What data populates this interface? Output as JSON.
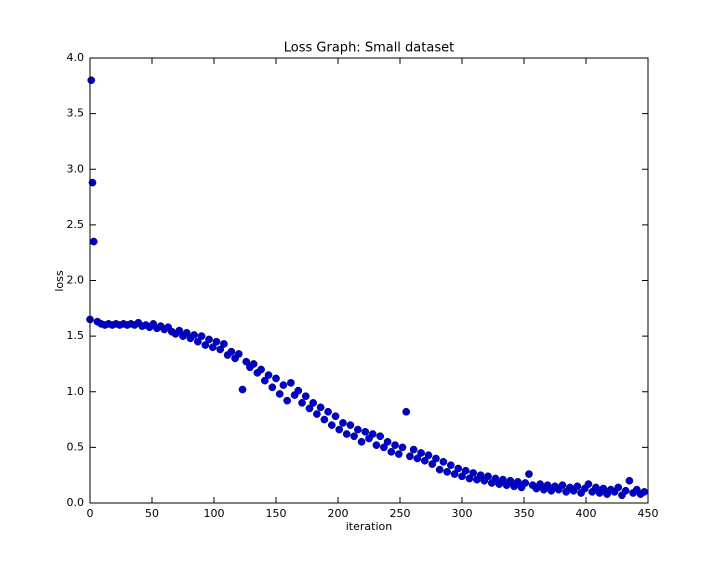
{
  "chart_data": {
    "type": "scatter",
    "title": "Loss Graph: Small dataset",
    "x_label": "iteration",
    "y_label": "loss",
    "xlim": [
      0,
      450
    ],
    "xticks": [
      0,
      50,
      100,
      150,
      200,
      250,
      300,
      350,
      400,
      450
    ],
    "ylim": [
      0,
      4
    ],
    "yticks": [
      {
        "value": 0,
        "label": "0.0"
      },
      {
        "value": 0.5,
        "label": "0.5"
      },
      {
        "value": 1,
        "label": "1.0"
      },
      {
        "value": 1.5,
        "label": "1.5"
      },
      {
        "value": 2,
        "label": "2.0"
      },
      {
        "value": 2.5,
        "label": "2.5"
      },
      {
        "value": 3,
        "label": "3.0"
      },
      {
        "value": 3.5,
        "label": "3.5"
      },
      {
        "value": 4,
        "label": "4.0"
      }
    ],
    "color": "#0000cc",
    "x": [
      0,
      1,
      2,
      3,
      6,
      9,
      12,
      15,
      18,
      21,
      24,
      27,
      30,
      33,
      36,
      39,
      42,
      45,
      48,
      51,
      54,
      57,
      60,
      63,
      66,
      69,
      72,
      75,
      78,
      81,
      84,
      87,
      90,
      93,
      96,
      99,
      102,
      105,
      108,
      111,
      114,
      117,
      120,
      123,
      126,
      129,
      132,
      135,
      138,
      141,
      144,
      147,
      150,
      153,
      156,
      159,
      162,
      165,
      168,
      171,
      174,
      177,
      180,
      183,
      186,
      189,
      192,
      195,
      198,
      201,
      204,
      207,
      210,
      213,
      216,
      219,
      222,
      225,
      228,
      231,
      234,
      237,
      240,
      243,
      246,
      249,
      252,
      255,
      258,
      261,
      264,
      267,
      270,
      273,
      276,
      279,
      282,
      285,
      288,
      291,
      294,
      297,
      300,
      303,
      306,
      309,
      312,
      315,
      318,
      321,
      324,
      327,
      330,
      333,
      336,
      339,
      342,
      345,
      348,
      351,
      354,
      357,
      360,
      363,
      366,
      369,
      372,
      375,
      378,
      381,
      384,
      387,
      390,
      393,
      396,
      399,
      402,
      405,
      408,
      411,
      414,
      417,
      420,
      423,
      426,
      429,
      432,
      435,
      438,
      441,
      444,
      447
    ],
    "values": [
      1.65,
      3.8,
      2.88,
      2.35,
      1.63,
      1.61,
      1.6,
      1.61,
      1.6,
      1.61,
      1.6,
      1.61,
      1.6,
      1.61,
      1.6,
      1.62,
      1.59,
      1.6,
      1.58,
      1.61,
      1.57,
      1.59,
      1.56,
      1.58,
      1.54,
      1.52,
      1.55,
      1.5,
      1.53,
      1.48,
      1.51,
      1.45,
      1.5,
      1.42,
      1.47,
      1.4,
      1.45,
      1.38,
      1.43,
      1.33,
      1.36,
      1.3,
      1.34,
      1.02,
      1.27,
      1.22,
      1.25,
      1.17,
      1.2,
      1.1,
      1.15,
      1.04,
      1.12,
      0.98,
      1.06,
      0.92,
      1.08,
      0.97,
      1.01,
      0.9,
      0.96,
      0.85,
      0.9,
      0.8,
      0.86,
      0.75,
      0.82,
      0.7,
      0.78,
      0.66,
      0.72,
      0.62,
      0.7,
      0.6,
      0.66,
      0.55,
      0.64,
      0.58,
      0.62,
      0.52,
      0.6,
      0.5,
      0.55,
      0.46,
      0.52,
      0.44,
      0.5,
      0.82,
      0.42,
      0.48,
      0.4,
      0.45,
      0.38,
      0.43,
      0.35,
      0.4,
      0.3,
      0.37,
      0.28,
      0.34,
      0.26,
      0.31,
      0.24,
      0.29,
      0.22,
      0.27,
      0.21,
      0.25,
      0.2,
      0.24,
      0.18,
      0.22,
      0.17,
      0.21,
      0.16,
      0.2,
      0.15,
      0.19,
      0.14,
      0.18,
      0.26,
      0.16,
      0.13,
      0.17,
      0.12,
      0.16,
      0.11,
      0.15,
      0.12,
      0.16,
      0.1,
      0.14,
      0.11,
      0.15,
      0.09,
      0.13,
      0.17,
      0.1,
      0.14,
      0.09,
      0.13,
      0.08,
      0.12,
      0.1,
      0.14,
      0.07,
      0.11,
      0.2,
      0.09,
      0.12,
      0.08,
      0.1
    ]
  }
}
